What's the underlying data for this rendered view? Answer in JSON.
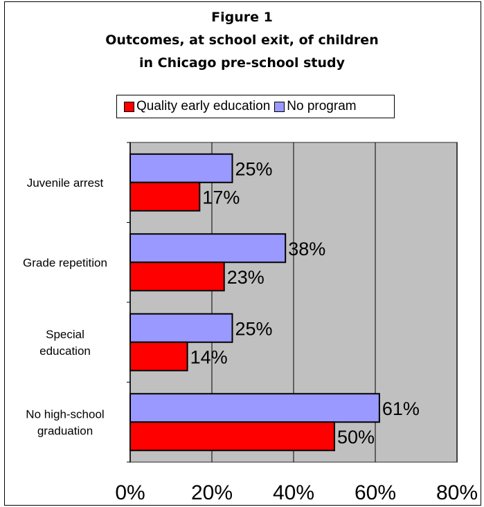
{
  "title_lines": [
    "Figure 1",
    "Outcomes, at school exit, of children",
    "in Chicago pre-school study"
  ],
  "legend": {
    "items": [
      {
        "label": "Quality early education",
        "color": "#ff0000"
      },
      {
        "label": "No program",
        "color": "#9999ff"
      }
    ]
  },
  "chart_data": {
    "type": "bar",
    "orientation": "horizontal",
    "title": "Figure 1 Outcomes, at school exit, of children in Chicago pre-school study",
    "categories": [
      [
        "Juvenile arrest"
      ],
      [
        "Grade repetition"
      ],
      [
        "Special",
        "education"
      ],
      [
        "No high-school",
        "graduation"
      ]
    ],
    "series": [
      {
        "name": "No program",
        "color": "#9999ff",
        "values": [
          25,
          38,
          25,
          61
        ],
        "labels": [
          "25%",
          "38%",
          "25%",
          "61%"
        ]
      },
      {
        "name": "Quality early education",
        "color": "#ff0000",
        "values": [
          17,
          23,
          14,
          50
        ],
        "labels": [
          "17%",
          "23%",
          "14%",
          "50%"
        ]
      }
    ],
    "xlim": [
      0,
      80
    ],
    "xticks": [
      0,
      20,
      40,
      60,
      80
    ],
    "xtick_labels": [
      "0%",
      "20%",
      "40%",
      "60%",
      "80%"
    ],
    "plot_background": "#c0c0c0",
    "grid": "vertical",
    "legend_position": "top"
  }
}
